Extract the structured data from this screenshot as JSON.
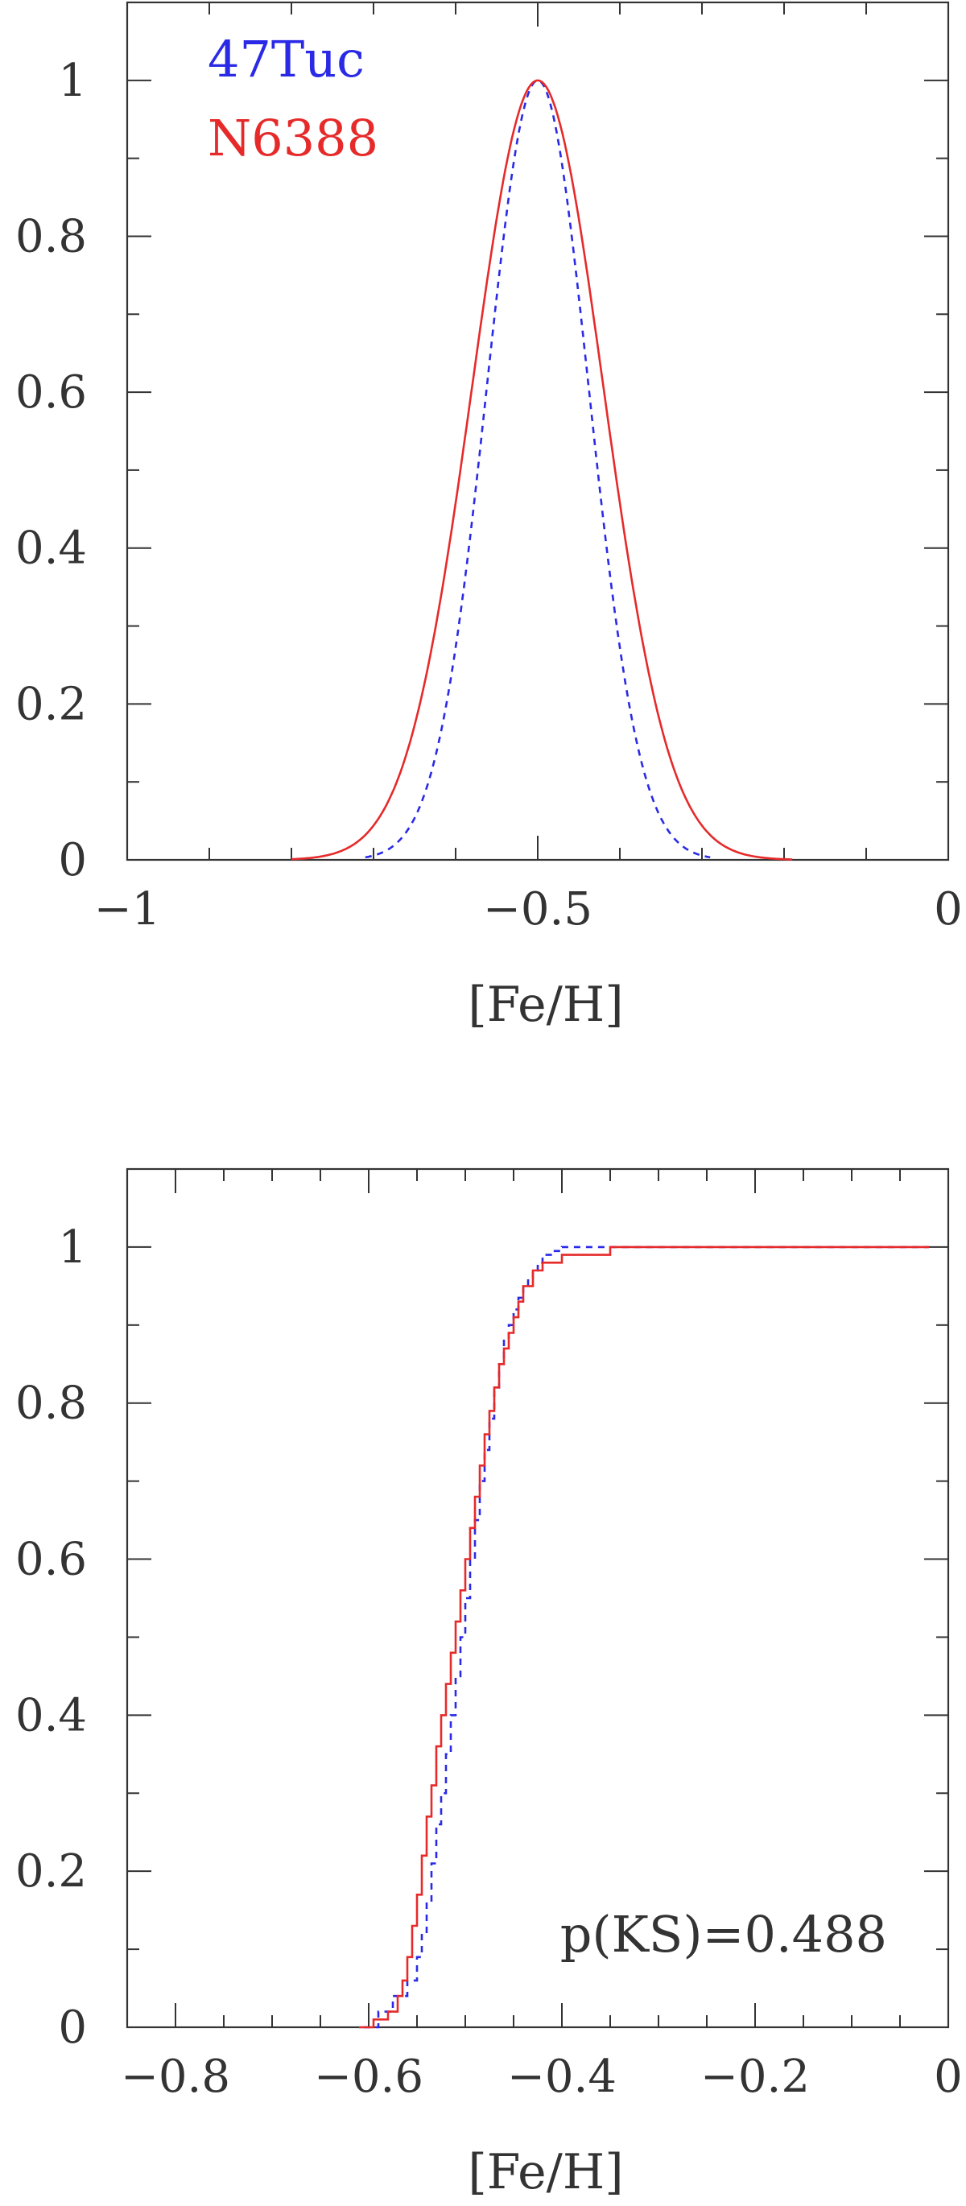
{
  "colors": {
    "47Tuc": "#2a2ae6",
    "N6388": "#e62a2a",
    "axes": "#333333"
  },
  "chart_data": [
    {
      "type": "line",
      "title": "",
      "xlabel": "[Fe/H]",
      "ylabel": "",
      "xlim": [
        -1.0,
        0.0
      ],
      "ylim": [
        0,
        1.1
      ],
      "xticks": [
        -1.0,
        -0.5,
        0.0
      ],
      "xtick_labels": [
        "−1",
        "−0.5",
        "0"
      ],
      "yticks": [
        0,
        0.2,
        0.4,
        0.6,
        0.8,
        1.0
      ],
      "ytick_labels": [
        "0",
        "0.2",
        "0.4",
        "0.6",
        "0.8",
        "1"
      ],
      "grid": false,
      "legend": "top-left",
      "series": [
        {
          "name": "47Tuc",
          "color": "#2a2ae6",
          "style": "dashed",
          "mean": -0.5,
          "sigma": 0.062,
          "x_range": [
            -0.71,
            -0.29
          ]
        },
        {
          "name": "N6388",
          "color": "#e62a2a",
          "style": "solid",
          "mean": -0.5,
          "sigma": 0.08,
          "x_range": [
            -0.8,
            -0.19
          ]
        }
      ]
    },
    {
      "type": "line",
      "title": "",
      "xlabel": "[Fe/H]",
      "ylabel": "",
      "xlim": [
        -0.85,
        0.0
      ],
      "ylim": [
        0,
        1.1
      ],
      "xticks": [
        -0.8,
        -0.6,
        -0.4,
        -0.2,
        0.0
      ],
      "xtick_labels": [
        "−0.8",
        "−0.6",
        "−0.4",
        "−0.2",
        "0"
      ],
      "yticks": [
        0,
        0.2,
        0.4,
        0.6,
        0.8,
        1.0
      ],
      "ytick_labels": [
        "0",
        "0.2",
        "0.4",
        "0.6",
        "0.8",
        "1"
      ],
      "grid": false,
      "annotation": "p(KS)=0.488",
      "series": [
        {
          "name": "47Tuc",
          "color": "#2a2ae6",
          "style": "dashed",
          "step": true,
          "x": [
            -0.605,
            -0.59,
            -0.575,
            -0.56,
            -0.55,
            -0.545,
            -0.54,
            -0.535,
            -0.53,
            -0.525,
            -0.52,
            -0.515,
            -0.51,
            -0.505,
            -0.5,
            -0.495,
            -0.49,
            -0.485,
            -0.48,
            -0.475,
            -0.47,
            -0.465,
            -0.46,
            -0.455,
            -0.45,
            -0.445,
            -0.44,
            -0.435,
            -0.43,
            -0.425,
            -0.42,
            -0.41,
            -0.4,
            -0.35,
            -0.02
          ],
          "y": [
            0.0,
            0.02,
            0.04,
            0.06,
            0.09,
            0.12,
            0.16,
            0.21,
            0.26,
            0.3,
            0.35,
            0.4,
            0.45,
            0.5,
            0.55,
            0.6,
            0.65,
            0.7,
            0.74,
            0.78,
            0.82,
            0.85,
            0.88,
            0.9,
            0.92,
            0.935,
            0.95,
            0.96,
            0.97,
            0.98,
            0.99,
            0.995,
            1.0,
            1.0,
            1.0
          ]
        },
        {
          "name": "N6388",
          "color": "#e62a2a",
          "style": "solid",
          "step": true,
          "x": [
            -0.61,
            -0.595,
            -0.58,
            -0.57,
            -0.565,
            -0.56,
            -0.555,
            -0.55,
            -0.545,
            -0.54,
            -0.535,
            -0.53,
            -0.525,
            -0.52,
            -0.515,
            -0.51,
            -0.505,
            -0.5,
            -0.495,
            -0.49,
            -0.485,
            -0.48,
            -0.475,
            -0.47,
            -0.465,
            -0.46,
            -0.455,
            -0.45,
            -0.445,
            -0.44,
            -0.43,
            -0.42,
            -0.4,
            -0.35,
            -0.02
          ],
          "y": [
            0.0,
            0.01,
            0.02,
            0.04,
            0.06,
            0.09,
            0.13,
            0.17,
            0.22,
            0.27,
            0.31,
            0.36,
            0.4,
            0.44,
            0.48,
            0.52,
            0.56,
            0.6,
            0.64,
            0.68,
            0.72,
            0.76,
            0.79,
            0.82,
            0.85,
            0.87,
            0.89,
            0.91,
            0.93,
            0.95,
            0.97,
            0.98,
            0.99,
            1.0,
            1.0
          ]
        }
      ]
    }
  ]
}
